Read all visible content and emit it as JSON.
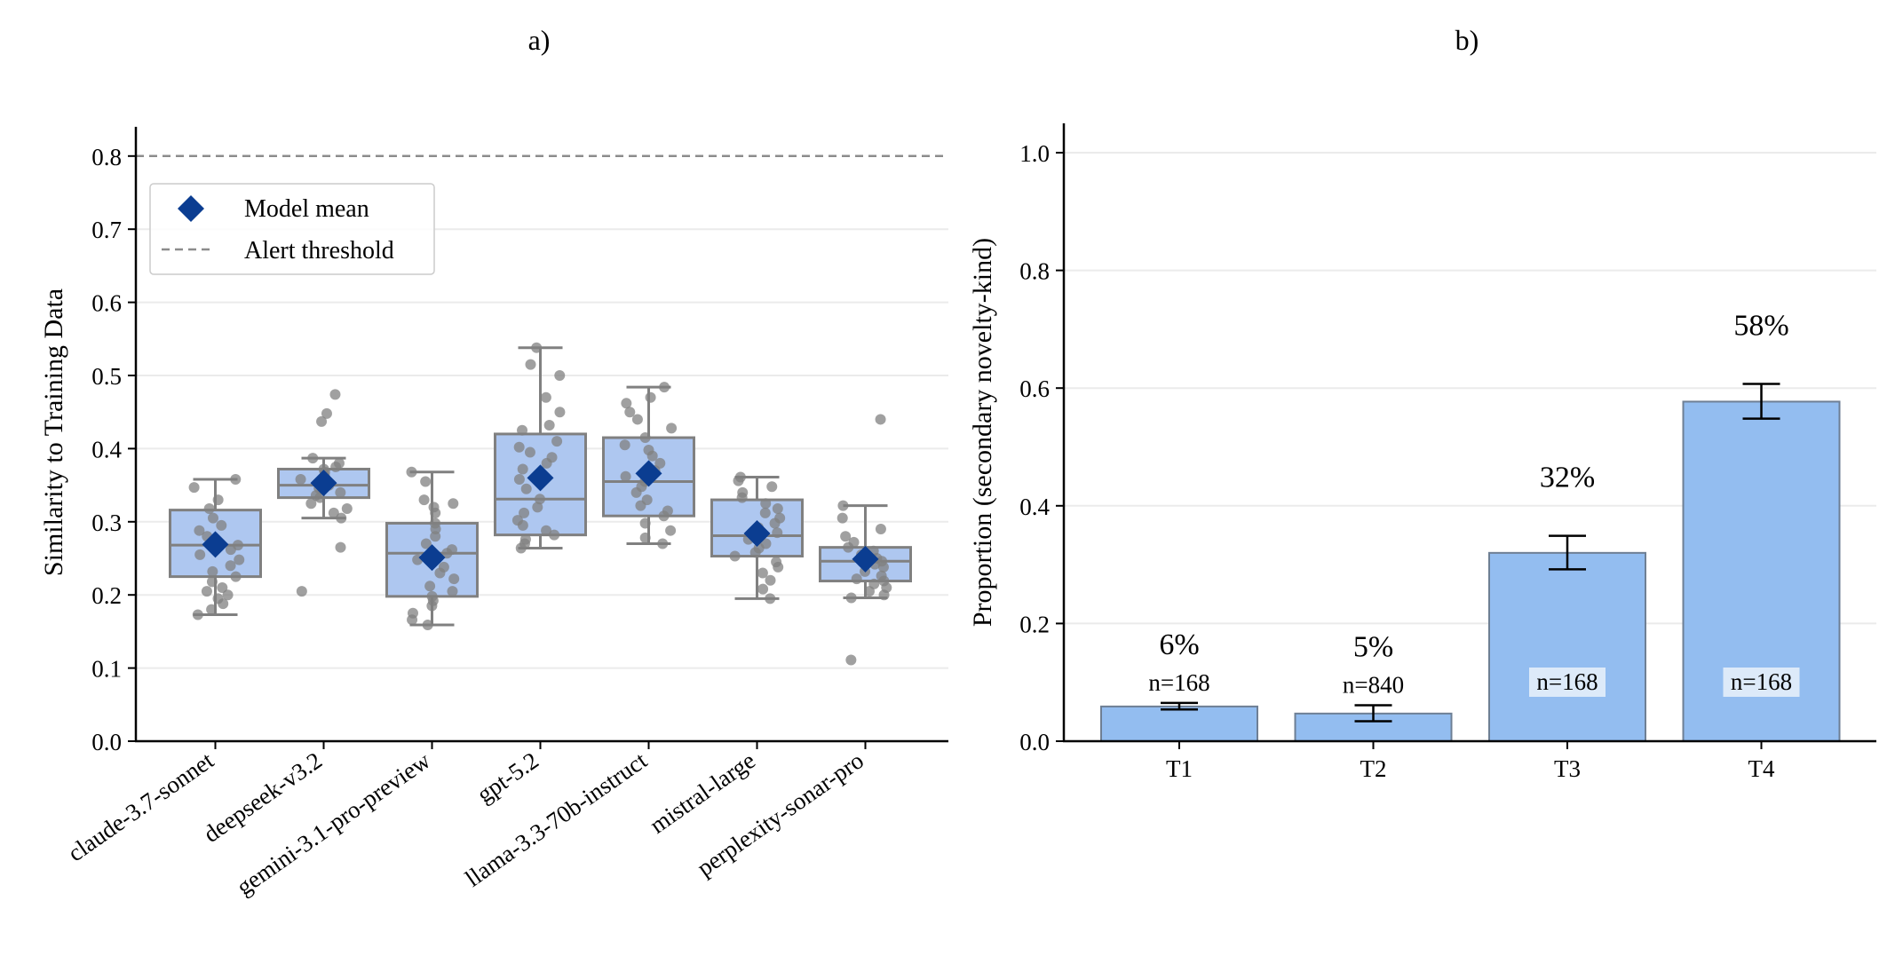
{
  "chart_data": [
    {
      "type": "box",
      "panel_label": "a)",
      "ylabel": "Similarity to Training Data",
      "xlabel": "",
      "ylim": [
        0,
        0.84
      ],
      "yticks": [
        "0.0",
        "0.1",
        "0.2",
        "0.3",
        "0.4",
        "0.5",
        "0.6",
        "0.7",
        "0.8"
      ],
      "grid": "horizontal",
      "legend": {
        "placement": "upper-left",
        "entries": [
          {
            "label": "Model mean",
            "marker": "diamond"
          },
          {
            "label": "Alert threshold",
            "marker": "dashed-line"
          }
        ]
      },
      "threshold": 0.8,
      "colors": {
        "box_fill": "#aec7f0",
        "box_edge": "#808080",
        "mean": "#0b3d91",
        "points": "#808080",
        "threshold": "#8c8c8c",
        "grid": "#ebebeb"
      },
      "categories": [
        "claude-3.7-sonnet",
        "deepseek-v3.2",
        "gemini-3.1-pro-preview",
        "gpt-5.2",
        "llama-3.3-70b-instruct",
        "mistral-large",
        "perplexity-sonar-pro"
      ],
      "boxes": [
        {
          "whisker_low": 0.173,
          "q1": 0.225,
          "median": 0.268,
          "q3": 0.316,
          "whisker_high": 0.358,
          "mean": 0.269,
          "outliers": []
        },
        {
          "whisker_low": 0.305,
          "q1": 0.333,
          "median": 0.35,
          "q3": 0.372,
          "whisker_high": 0.387,
          "mean": 0.353,
          "outliers": [
            0.205,
            0.265,
            0.437,
            0.448,
            0.474
          ]
        },
        {
          "whisker_low": 0.159,
          "q1": 0.198,
          "median": 0.257,
          "q3": 0.298,
          "whisker_high": 0.368,
          "mean": 0.251,
          "outliers": []
        },
        {
          "whisker_low": 0.264,
          "q1": 0.282,
          "median": 0.331,
          "q3": 0.42,
          "whisker_high": 0.538,
          "mean": 0.36,
          "outliers": []
        },
        {
          "whisker_low": 0.27,
          "q1": 0.308,
          "median": 0.355,
          "q3": 0.415,
          "whisker_high": 0.484,
          "mean": 0.366,
          "outliers": []
        },
        {
          "whisker_low": 0.195,
          "q1": 0.253,
          "median": 0.281,
          "q3": 0.33,
          "whisker_high": 0.361,
          "mean": 0.284,
          "outliers": []
        },
        {
          "whisker_low": 0.196,
          "q1": 0.219,
          "median": 0.246,
          "q3": 0.265,
          "whisker_high": 0.322,
          "mean": 0.249,
          "outliers": [
            0.111,
            0.44
          ]
        }
      ],
      "points": [
        [
          0.358,
          0.347,
          0.33,
          0.318,
          0.305,
          0.295,
          0.288,
          0.28,
          0.272,
          0.268,
          0.262,
          0.255,
          0.248,
          0.24,
          0.232,
          0.225,
          0.218,
          0.21,
          0.205,
          0.2,
          0.195,
          0.188,
          0.18,
          0.173
        ],
        [
          0.474,
          0.448,
          0.437,
          0.387,
          0.38,
          0.375,
          0.372,
          0.368,
          0.362,
          0.358,
          0.352,
          0.35,
          0.346,
          0.34,
          0.336,
          0.333,
          0.325,
          0.318,
          0.312,
          0.305,
          0.265,
          0.205
        ],
        [
          0.368,
          0.355,
          0.33,
          0.325,
          0.32,
          0.312,
          0.298,
          0.29,
          0.28,
          0.27,
          0.262,
          0.257,
          0.248,
          0.238,
          0.23,
          0.222,
          0.212,
          0.205,
          0.198,
          0.192,
          0.185,
          0.175,
          0.166,
          0.159
        ],
        [
          0.538,
          0.515,
          0.5,
          0.47,
          0.45,
          0.432,
          0.425,
          0.41,
          0.402,
          0.395,
          0.388,
          0.38,
          0.372,
          0.358,
          0.345,
          0.331,
          0.32,
          0.312,
          0.302,
          0.295,
          0.288,
          0.282,
          0.276,
          0.27,
          0.264
        ],
        [
          0.484,
          0.47,
          0.462,
          0.45,
          0.44,
          0.428,
          0.415,
          0.405,
          0.398,
          0.39,
          0.38,
          0.37,
          0.362,
          0.355,
          0.348,
          0.34,
          0.33,
          0.322,
          0.315,
          0.308,
          0.298,
          0.288,
          0.278,
          0.27
        ],
        [
          0.361,
          0.356,
          0.348,
          0.34,
          0.333,
          0.325,
          0.318,
          0.312,
          0.305,
          0.298,
          0.292,
          0.285,
          0.281,
          0.276,
          0.27,
          0.264,
          0.258,
          0.253,
          0.245,
          0.238,
          0.23,
          0.22,
          0.208,
          0.195
        ],
        [
          0.44,
          0.322,
          0.305,
          0.29,
          0.28,
          0.272,
          0.265,
          0.26,
          0.255,
          0.25,
          0.246,
          0.242,
          0.238,
          0.232,
          0.226,
          0.222,
          0.219,
          0.215,
          0.21,
          0.205,
          0.2,
          0.196,
          0.111
        ]
      ]
    },
    {
      "type": "bar",
      "panel_label": "b)",
      "ylabel": "Proportion (secondary novelty-kind)",
      "xlabel": "",
      "ylim": [
        0,
        1.05
      ],
      "yticks": [
        "0.0",
        "0.2",
        "0.4",
        "0.6",
        "0.8",
        "1.0"
      ],
      "grid": "horizontal",
      "colors": {
        "bar_fill": "#93bdf0",
        "bar_edge": "#6e7f94",
        "error_bar": "#000000",
        "n_label_bg": "#e6eefa"
      },
      "categories": [
        "T1",
        "T2",
        "T3",
        "T4"
      ],
      "values": [
        0.059,
        0.047,
        0.32,
        0.577
      ],
      "errors": [
        [
          0.054,
          0.065
        ],
        [
          0.034,
          0.061
        ],
        [
          0.292,
          0.349
        ],
        [
          0.548,
          0.607
        ]
      ],
      "value_labels": [
        "6%",
        "5%",
        "32%",
        "58%"
      ],
      "n_labels": [
        "n=168",
        "n=840",
        "n=168",
        "n=168"
      ]
    }
  ]
}
